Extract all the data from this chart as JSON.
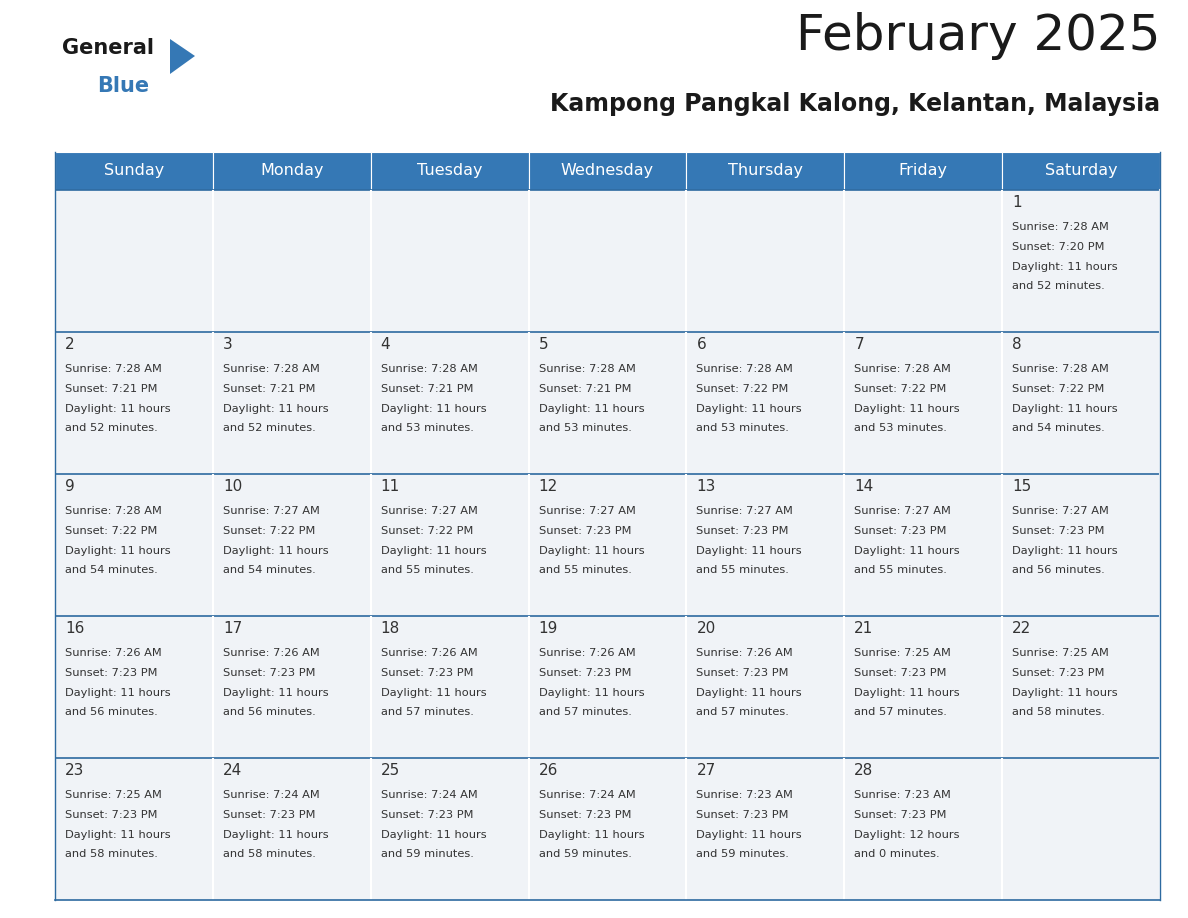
{
  "title": "February 2025",
  "subtitle": "Kampong Pangkal Kalong, Kelantan, Malaysia",
  "header_color": "#3578b5",
  "header_text_color": "#ffffff",
  "cell_bg_color": "#f0f3f7",
  "border_color": "#2d6aa0",
  "text_color": "#333333",
  "days_of_week": [
    "Sunday",
    "Monday",
    "Tuesday",
    "Wednesday",
    "Thursday",
    "Friday",
    "Saturday"
  ],
  "calendar_data": [
    [
      null,
      null,
      null,
      null,
      null,
      null,
      {
        "day": 1,
        "sunrise": "7:28 AM",
        "sunset": "7:20 PM",
        "daylight_hours": 11,
        "daylight_minutes": 52
      }
    ],
    [
      {
        "day": 2,
        "sunrise": "7:28 AM",
        "sunset": "7:21 PM",
        "daylight_hours": 11,
        "daylight_minutes": 52
      },
      {
        "day": 3,
        "sunrise": "7:28 AM",
        "sunset": "7:21 PM",
        "daylight_hours": 11,
        "daylight_minutes": 52
      },
      {
        "day": 4,
        "sunrise": "7:28 AM",
        "sunset": "7:21 PM",
        "daylight_hours": 11,
        "daylight_minutes": 53
      },
      {
        "day": 5,
        "sunrise": "7:28 AM",
        "sunset": "7:21 PM",
        "daylight_hours": 11,
        "daylight_minutes": 53
      },
      {
        "day": 6,
        "sunrise": "7:28 AM",
        "sunset": "7:22 PM",
        "daylight_hours": 11,
        "daylight_minutes": 53
      },
      {
        "day": 7,
        "sunrise": "7:28 AM",
        "sunset": "7:22 PM",
        "daylight_hours": 11,
        "daylight_minutes": 53
      },
      {
        "day": 8,
        "sunrise": "7:28 AM",
        "sunset": "7:22 PM",
        "daylight_hours": 11,
        "daylight_minutes": 54
      }
    ],
    [
      {
        "day": 9,
        "sunrise": "7:28 AM",
        "sunset": "7:22 PM",
        "daylight_hours": 11,
        "daylight_minutes": 54
      },
      {
        "day": 10,
        "sunrise": "7:27 AM",
        "sunset": "7:22 PM",
        "daylight_hours": 11,
        "daylight_minutes": 54
      },
      {
        "day": 11,
        "sunrise": "7:27 AM",
        "sunset": "7:22 PM",
        "daylight_hours": 11,
        "daylight_minutes": 55
      },
      {
        "day": 12,
        "sunrise": "7:27 AM",
        "sunset": "7:23 PM",
        "daylight_hours": 11,
        "daylight_minutes": 55
      },
      {
        "day": 13,
        "sunrise": "7:27 AM",
        "sunset": "7:23 PM",
        "daylight_hours": 11,
        "daylight_minutes": 55
      },
      {
        "day": 14,
        "sunrise": "7:27 AM",
        "sunset": "7:23 PM",
        "daylight_hours": 11,
        "daylight_minutes": 55
      },
      {
        "day": 15,
        "sunrise": "7:27 AM",
        "sunset": "7:23 PM",
        "daylight_hours": 11,
        "daylight_minutes": 56
      }
    ],
    [
      {
        "day": 16,
        "sunrise": "7:26 AM",
        "sunset": "7:23 PM",
        "daylight_hours": 11,
        "daylight_minutes": 56
      },
      {
        "day": 17,
        "sunrise": "7:26 AM",
        "sunset": "7:23 PM",
        "daylight_hours": 11,
        "daylight_minutes": 56
      },
      {
        "day": 18,
        "sunrise": "7:26 AM",
        "sunset": "7:23 PM",
        "daylight_hours": 11,
        "daylight_minutes": 57
      },
      {
        "day": 19,
        "sunrise": "7:26 AM",
        "sunset": "7:23 PM",
        "daylight_hours": 11,
        "daylight_minutes": 57
      },
      {
        "day": 20,
        "sunrise": "7:26 AM",
        "sunset": "7:23 PM",
        "daylight_hours": 11,
        "daylight_minutes": 57
      },
      {
        "day": 21,
        "sunrise": "7:25 AM",
        "sunset": "7:23 PM",
        "daylight_hours": 11,
        "daylight_minutes": 57
      },
      {
        "day": 22,
        "sunrise": "7:25 AM",
        "sunset": "7:23 PM",
        "daylight_hours": 11,
        "daylight_minutes": 58
      }
    ],
    [
      {
        "day": 23,
        "sunrise": "7:25 AM",
        "sunset": "7:23 PM",
        "daylight_hours": 11,
        "daylight_minutes": 58
      },
      {
        "day": 24,
        "sunrise": "7:24 AM",
        "sunset": "7:23 PM",
        "daylight_hours": 11,
        "daylight_minutes": 58
      },
      {
        "day": 25,
        "sunrise": "7:24 AM",
        "sunset": "7:23 PM",
        "daylight_hours": 11,
        "daylight_minutes": 59
      },
      {
        "day": 26,
        "sunrise": "7:24 AM",
        "sunset": "7:23 PM",
        "daylight_hours": 11,
        "daylight_minutes": 59
      },
      {
        "day": 27,
        "sunrise": "7:23 AM",
        "sunset": "7:23 PM",
        "daylight_hours": 11,
        "daylight_minutes": 59
      },
      {
        "day": 28,
        "sunrise": "7:23 AM",
        "sunset": "7:23 PM",
        "daylight_hours": 12,
        "daylight_minutes": 0
      },
      null
    ]
  ],
  "logo_text_general": "General",
  "logo_text_blue": "Blue",
  "logo_color_general": "#1a1a1a",
  "logo_color_blue": "#3578b5",
  "logo_triangle_color": "#3578b5",
  "title_fontsize": 36,
  "subtitle_fontsize": 17,
  "header_fontsize": 11.5,
  "day_num_fontsize": 11,
  "cell_text_fontsize": 8.2
}
